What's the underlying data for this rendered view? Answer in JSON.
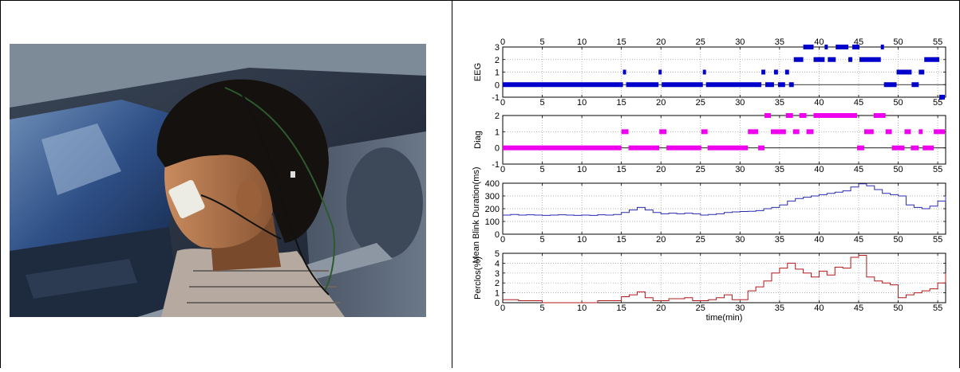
{
  "chart_data": [
    {
      "type": "line",
      "ylabel": "EEG",
      "xlim": [
        0,
        56
      ],
      "ylim": [
        -1,
        3
      ],
      "yticks": [
        -1,
        0,
        1,
        2,
        3
      ],
      "xticks": [
        0,
        5,
        10,
        15,
        20,
        25,
        30,
        35,
        40,
        45,
        50,
        55
      ],
      "grid": true,
      "color": "#0000cc",
      "style": "markers",
      "segments": [
        {
          "x0": 0,
          "x1": 15.2,
          "y": 0
        },
        {
          "x0": 15.2,
          "x1": 15.6,
          "y": 1
        },
        {
          "x0": 15.6,
          "x1": 19.7,
          "y": 0
        },
        {
          "x0": 19.7,
          "x1": 20.1,
          "y": 1
        },
        {
          "x0": 20.1,
          "x1": 25.3,
          "y": 0
        },
        {
          "x0": 25.3,
          "x1": 25.7,
          "y": 1
        },
        {
          "x0": 25.7,
          "x1": 32.7,
          "y": 0
        },
        {
          "x0": 32.7,
          "x1": 33.2,
          "y": 1
        },
        {
          "x0": 33.2,
          "x1": 34.3,
          "y": 0
        },
        {
          "x0": 34.3,
          "x1": 34.8,
          "y": 1
        },
        {
          "x0": 34.8,
          "x1": 35.7,
          "y": 0
        },
        {
          "x0": 35.7,
          "x1": 36.2,
          "y": 1
        },
        {
          "x0": 36.2,
          "x1": 36.8,
          "y": 0
        },
        {
          "x0": 36.8,
          "x1": 38.0,
          "y": 2
        },
        {
          "x0": 38.0,
          "x1": 39.3,
          "y": 3
        },
        {
          "x0": 39.3,
          "x1": 40.7,
          "y": 2
        },
        {
          "x0": 40.7,
          "x1": 41.1,
          "y": 3
        },
        {
          "x0": 41.1,
          "x1": 42.1,
          "y": 2
        },
        {
          "x0": 42.1,
          "x1": 43.7,
          "y": 3
        },
        {
          "x0": 43.7,
          "x1": 44.2,
          "y": 2
        },
        {
          "x0": 44.2,
          "x1": 45.1,
          "y": 3
        },
        {
          "x0": 45.1,
          "x1": 47.8,
          "y": 2
        },
        {
          "x0": 47.8,
          "x1": 48.2,
          "y": 3
        },
        {
          "x0": 48.2,
          "x1": 49.8,
          "y": 0
        },
        {
          "x0": 49.8,
          "x1": 51.7,
          "y": 1
        },
        {
          "x0": 51.7,
          "x1": 52.6,
          "y": 0
        },
        {
          "x0": 52.6,
          "x1": 53.3,
          "y": 1
        },
        {
          "x0": 53.3,
          "x1": 55.2,
          "y": 2
        },
        {
          "x0": 55.2,
          "x1": 55.9,
          "y": -1
        }
      ]
    },
    {
      "type": "line",
      "ylabel": "Diag",
      "xlim": [
        0,
        56
      ],
      "ylim": [
        -1,
        2
      ],
      "yticks": [
        -1,
        0,
        1,
        2
      ],
      "xticks": [
        0,
        5,
        10,
        15,
        20,
        25,
        30,
        35,
        40,
        45,
        50,
        55
      ],
      "grid": true,
      "color": "#ee00ee",
      "style": "markers",
      "segments": [
        {
          "x0": 0,
          "x1": 15.0,
          "y": 0
        },
        {
          "x0": 15.0,
          "x1": 15.9,
          "y": 1
        },
        {
          "x0": 15.9,
          "x1": 19.8,
          "y": 0
        },
        {
          "x0": 19.8,
          "x1": 20.7,
          "y": 1
        },
        {
          "x0": 20.7,
          "x1": 25.1,
          "y": 0
        },
        {
          "x0": 25.1,
          "x1": 25.9,
          "y": 1
        },
        {
          "x0": 25.9,
          "x1": 31.0,
          "y": 0
        },
        {
          "x0": 31.0,
          "x1": 32.3,
          "y": 1
        },
        {
          "x0": 32.3,
          "x1": 33.1,
          "y": 0
        },
        {
          "x0": 33.1,
          "x1": 33.9,
          "y": 2
        },
        {
          "x0": 33.9,
          "x1": 35.8,
          "y": 1
        },
        {
          "x0": 35.8,
          "x1": 36.7,
          "y": 2
        },
        {
          "x0": 36.7,
          "x1": 37.5,
          "y": 1
        },
        {
          "x0": 37.5,
          "x1": 38.4,
          "y": 2
        },
        {
          "x0": 38.4,
          "x1": 39.3,
          "y": 1
        },
        {
          "x0": 39.3,
          "x1": 44.8,
          "y": 2
        },
        {
          "x0": 44.8,
          "x1": 45.7,
          "y": 0
        },
        {
          "x0": 45.7,
          "x1": 46.9,
          "y": 1
        },
        {
          "x0": 46.9,
          "x1": 48.4,
          "y": 2
        },
        {
          "x0": 48.4,
          "x1": 49.2,
          "y": 1
        },
        {
          "x0": 49.2,
          "x1": 50.8,
          "y": 0
        },
        {
          "x0": 50.8,
          "x1": 51.6,
          "y": 1
        },
        {
          "x0": 51.6,
          "x1": 52.6,
          "y": 0
        },
        {
          "x0": 52.6,
          "x1": 53.1,
          "y": 1
        },
        {
          "x0": 53.1,
          "x1": 54.5,
          "y": 0
        },
        {
          "x0": 54.5,
          "x1": 55.9,
          "y": 1
        }
      ]
    },
    {
      "type": "line",
      "ylabel": "Mean Blink Duration(ms)",
      "xlim": [
        0,
        56
      ],
      "ylim": [
        0,
        400
      ],
      "yticks": [
        0,
        100,
        200,
        300,
        400
      ],
      "xticks": [
        0,
        5,
        10,
        15,
        20,
        25,
        30,
        35,
        40,
        45,
        50,
        55
      ],
      "grid": true,
      "color": "#2a2ab0",
      "style": "step",
      "x": [
        0,
        1,
        2,
        3,
        4,
        5,
        6,
        7,
        8,
        9,
        10,
        11,
        12,
        13,
        14,
        15,
        16,
        17,
        18,
        19,
        20,
        21,
        22,
        23,
        24,
        25,
        26,
        27,
        28,
        29,
        30,
        31,
        32,
        33,
        34,
        35,
        36,
        37,
        38,
        39,
        40,
        41,
        42,
        43,
        44,
        45,
        46,
        47,
        48,
        49,
        50,
        51,
        52,
        53,
        54,
        55,
        56
      ],
      "y": [
        150,
        155,
        150,
        152,
        150,
        148,
        150,
        152,
        150,
        148,
        150,
        148,
        152,
        150,
        155,
        170,
        190,
        210,
        190,
        170,
        160,
        165,
        160,
        165,
        160,
        150,
        155,
        160,
        170,
        175,
        178,
        180,
        185,
        200,
        210,
        230,
        260,
        280,
        290,
        300,
        310,
        320,
        330,
        340,
        370,
        395,
        380,
        350,
        320,
        310,
        300,
        230,
        210,
        200,
        220,
        260,
        300
      ]
    },
    {
      "type": "line",
      "ylabel": "Perclos(%)",
      "xlabel": "time(min)",
      "xlim": [
        0,
        56
      ],
      "ylim": [
        0,
        5
      ],
      "yticks": [
        0,
        1,
        2,
        3,
        4,
        5
      ],
      "xticks": [
        0,
        5,
        10,
        15,
        20,
        25,
        30,
        35,
        40,
        45,
        50,
        55
      ],
      "grid": true,
      "color": "#b01818",
      "style": "step",
      "x": [
        0,
        1,
        2,
        3,
        4,
        5,
        6,
        7,
        8,
        9,
        10,
        11,
        12,
        13,
        14,
        15,
        16,
        17,
        18,
        19,
        20,
        21,
        22,
        23,
        24,
        25,
        26,
        27,
        28,
        29,
        30,
        31,
        32,
        33,
        34,
        35,
        36,
        37,
        38,
        39,
        40,
        41,
        42,
        43,
        44,
        45,
        46,
        47,
        48,
        49,
        50,
        51,
        52,
        53,
        54,
        55,
        56
      ],
      "y": [
        0.3,
        0.3,
        0.2,
        0.2,
        0.2,
        0,
        0,
        0,
        0,
        0,
        0,
        0,
        0.2,
        0.2,
        0.2,
        0.6,
        0.8,
        1.1,
        0.5,
        0.2,
        0.2,
        0.4,
        0.4,
        0.5,
        0.2,
        0.2,
        0.3,
        0.5,
        0.8,
        0.3,
        0.3,
        1.2,
        1.6,
        2.2,
        3.0,
        3.5,
        4.0,
        3.4,
        3.0,
        2.6,
        3.2,
        2.8,
        3.6,
        3.5,
        4.6,
        4.8,
        2.6,
        2.2,
        2.0,
        1.8,
        0.5,
        0.8,
        1.0,
        1.2,
        1.4,
        2.0,
        3.0
      ]
    }
  ]
}
